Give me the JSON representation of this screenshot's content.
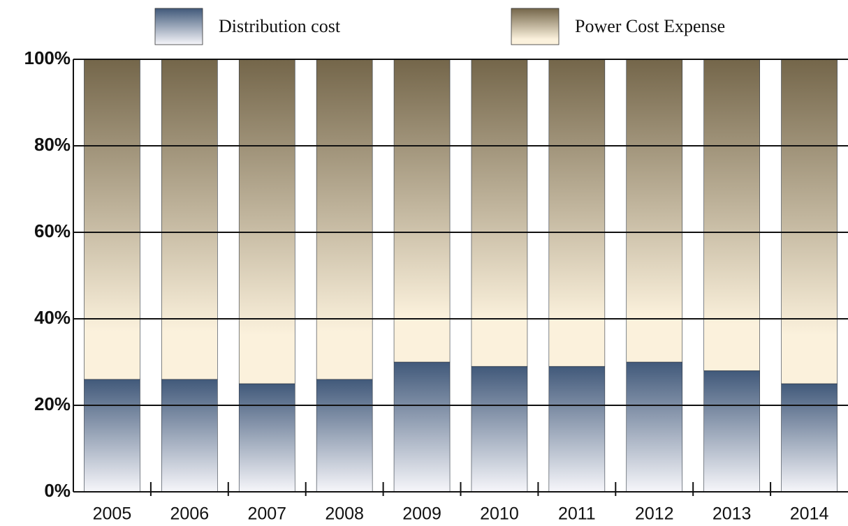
{
  "chart_data": {
    "type": "stacked_bar",
    "categories": [
      "2005",
      "2006",
      "2007",
      "2008",
      "2009",
      "2010",
      "2011",
      "2012",
      "2013",
      "2014"
    ],
    "series": [
      {
        "name": "Distribution cost",
        "color": "#41597a",
        "values": [
          26,
          26,
          25,
          26,
          30,
          29,
          29,
          30,
          28,
          25
        ]
      },
      {
        "name": "Power Cost Expense",
        "color": "#74664a",
        "values": [
          74,
          74,
          75,
          74,
          70,
          71,
          71,
          70,
          72,
          75
        ]
      }
    ],
    "ylim": [
      0,
      100
    ],
    "yticks": [
      {
        "value": 0,
        "label": "0%"
      },
      {
        "value": 20,
        "label": "20%"
      },
      {
        "value": 40,
        "label": "40%"
      },
      {
        "value": 60,
        "label": "60%"
      },
      {
        "value": 80,
        "label": "80%"
      },
      {
        "value": 100,
        "label": "100%"
      }
    ],
    "grid": true
  }
}
